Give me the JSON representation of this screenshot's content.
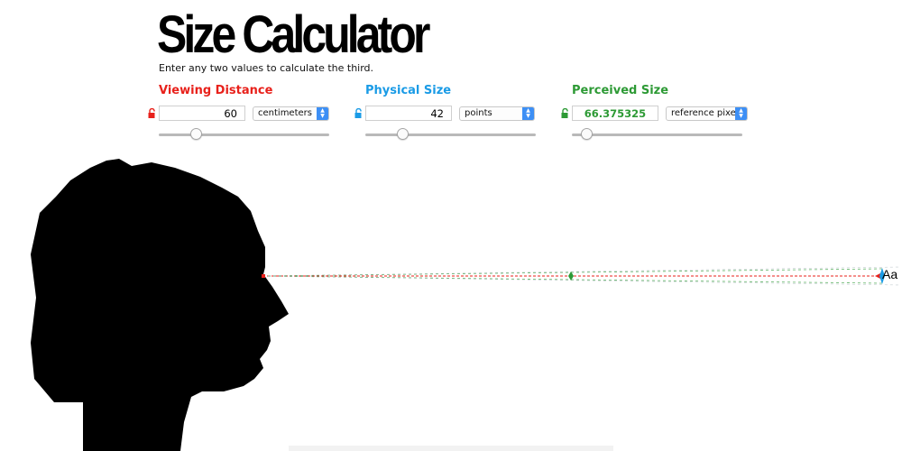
{
  "page": {
    "title": "Size Calculator",
    "subtitle": "Enter any two values to calculate the third."
  },
  "viewing_distance": {
    "label": "Viewing Distance",
    "color": "#e8211b",
    "value": "60",
    "unit": "centimeters",
    "locked": false,
    "slider_fraction": 0.22
  },
  "physical_size": {
    "label": "Physical Size",
    "color": "#1a9be6",
    "value": "42",
    "unit": "points",
    "locked": false,
    "slider_fraction": 0.22
  },
  "perceived_size": {
    "label": "Perceived Size",
    "color": "#2d9a35",
    "value": "66.375325",
    "unit": "reference pixels",
    "locked": false,
    "slider_fraction": 0.09
  },
  "scene": {
    "sample_text": "Aa"
  },
  "icons": {
    "lock": "unlocked-padlock-icon",
    "select": "updown-chevron-icon"
  }
}
